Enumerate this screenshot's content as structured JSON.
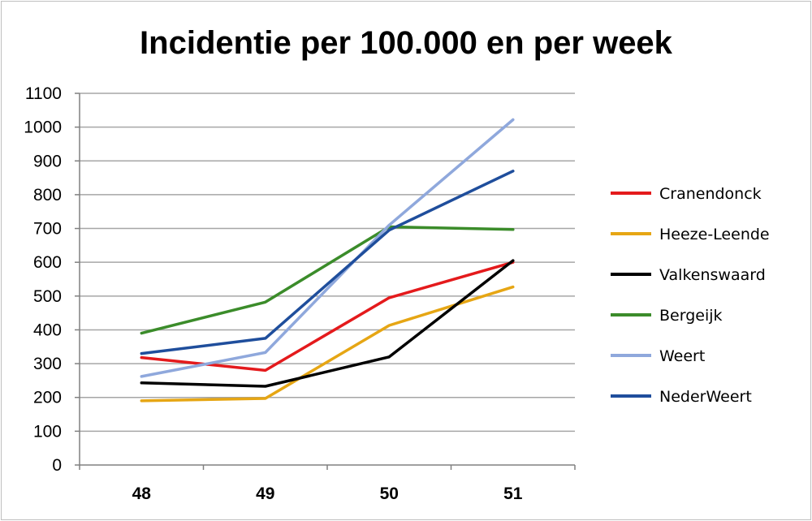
{
  "chart_data": {
    "type": "line",
    "title": "Incidentie per 100.000 en per week",
    "xlabel": "",
    "ylabel": "",
    "categories": [
      "48",
      "49",
      "50",
      "51"
    ],
    "ylim": [
      0,
      1100
    ],
    "yticks": [
      0,
      100,
      200,
      300,
      400,
      500,
      600,
      700,
      800,
      900,
      1000,
      1100
    ],
    "grid": true,
    "legend_position": "right",
    "series": [
      {
        "name": "Cranendonck",
        "color": "#e41a1c",
        "values": [
          318,
          280,
          495,
          600
        ]
      },
      {
        "name": "Heeze-Leende",
        "color": "#e6a614",
        "values": [
          190,
          197,
          413,
          527
        ]
      },
      {
        "name": "Valkenswaard",
        "color": "#000000",
        "values": [
          243,
          233,
          320,
          605
        ]
      },
      {
        "name": "Bergeijk",
        "color": "#3b8c2a",
        "values": [
          390,
          482,
          705,
          697
        ]
      },
      {
        "name": "Weert",
        "color": "#8fa8dc",
        "values": [
          262,
          333,
          710,
          1022
        ]
      },
      {
        "name": "NederWeert",
        "color": "#1f4e9c",
        "values": [
          330,
          375,
          695,
          870
        ]
      }
    ]
  }
}
